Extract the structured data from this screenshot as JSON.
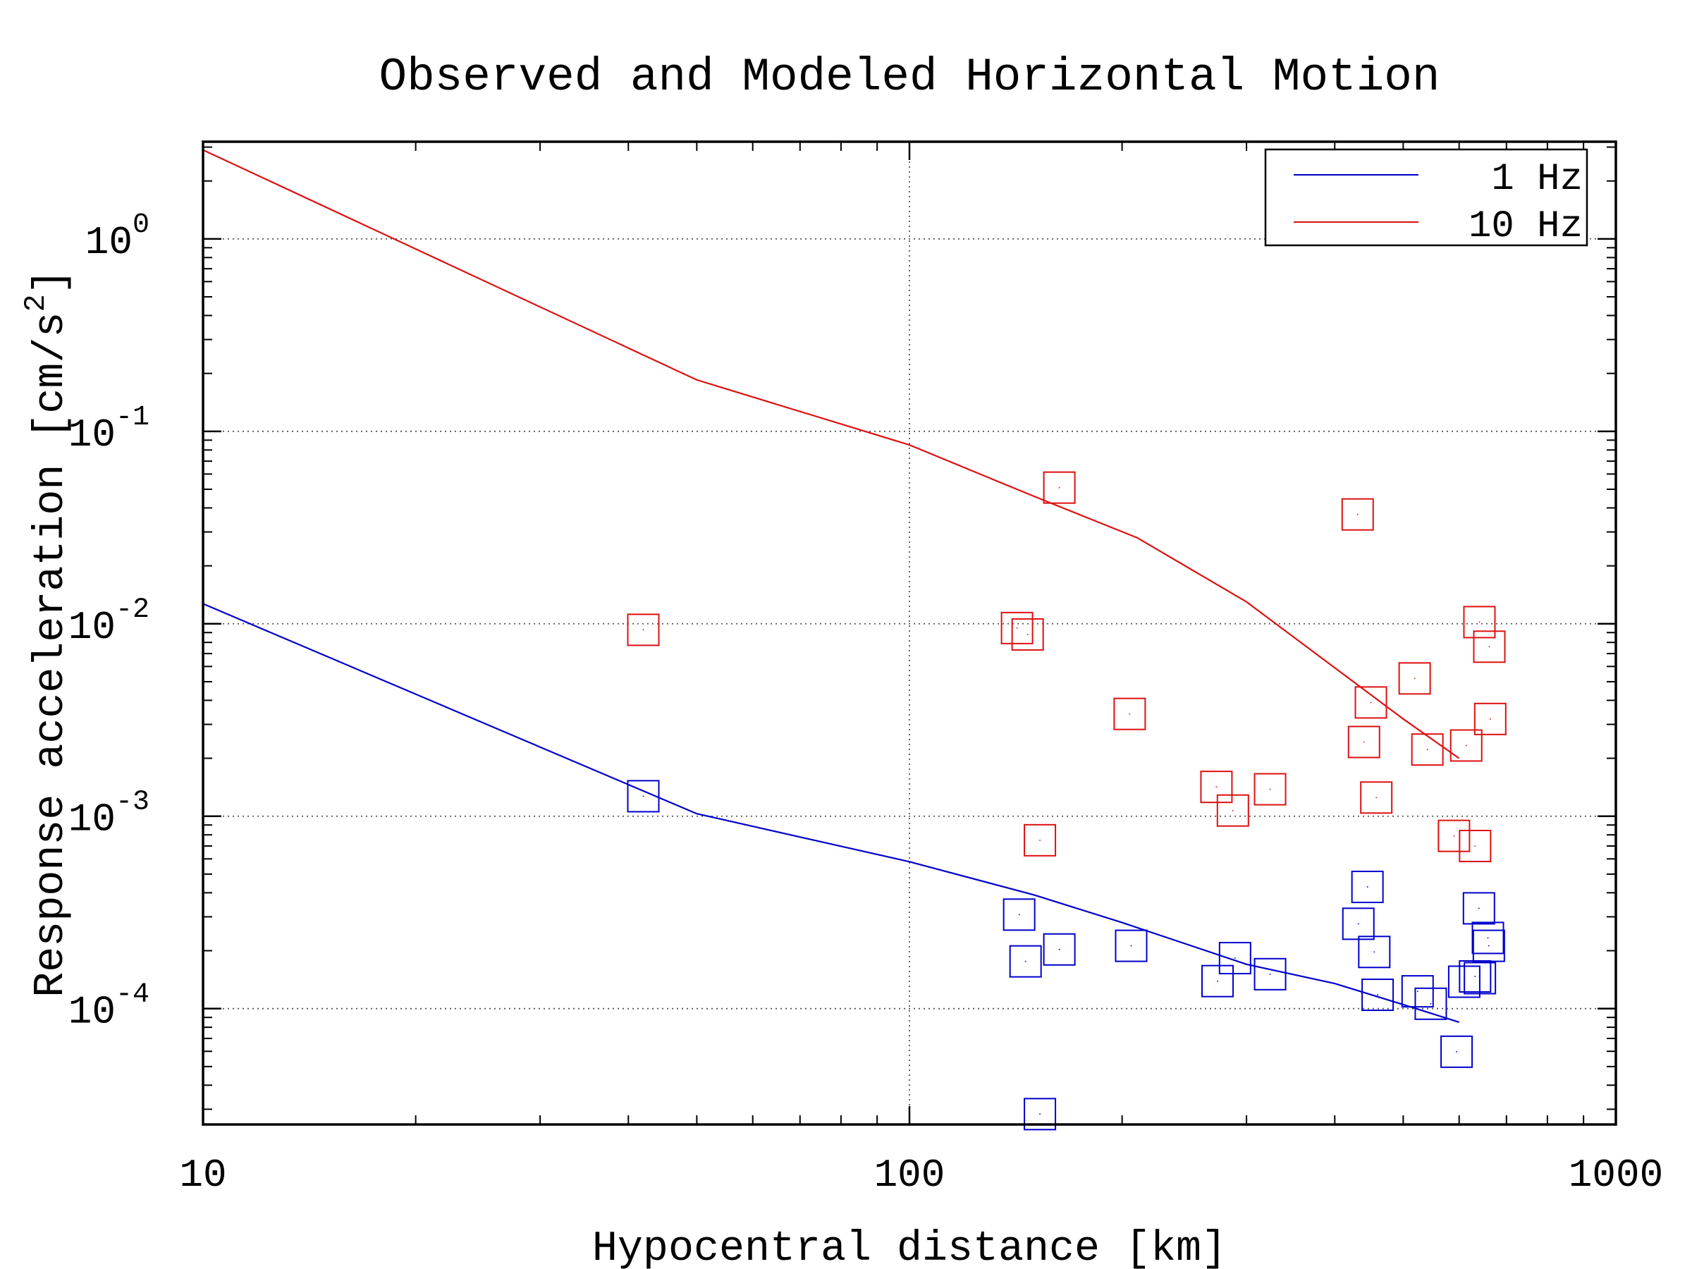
{
  "chart_data": {
    "type": "scatter",
    "title": "Observed and Modeled Horizontal Motion",
    "xlabel": "Hypocentral distance [km]",
    "ylabel": "Response acceleration [cm/s^2]",
    "ylabel_main": "Response acceleration [cm/s",
    "ylabel_sup": "2",
    "ylabel_end": "]",
    "xscale": "log",
    "yscale": "log",
    "xlim": [
      10,
      1000
    ],
    "ylim": [
      2.5e-05,
      3.2
    ],
    "xticks": [
      {
        "value": 10,
        "label": "10"
      },
      {
        "value": 100,
        "label": "100"
      },
      {
        "value": 1000,
        "label": "1000"
      }
    ],
    "yticks": [
      {
        "value": 0.0001,
        "base": "10",
        "exp": "-4"
      },
      {
        "value": 0.001,
        "base": "10",
        "exp": "-3"
      },
      {
        "value": 0.01,
        "base": "10",
        "exp": "-2"
      },
      {
        "value": 0.1,
        "base": "10",
        "exp": "-1"
      },
      {
        "value": 1,
        "base": "10",
        "exp": "0"
      }
    ],
    "grid": true,
    "legend_position": "top-right",
    "series": [
      {
        "name": "1 Hz",
        "color": "#0000cc",
        "line": {
          "x": [
            10,
            50,
            100,
            150,
            200,
            300,
            400,
            500,
            600
          ],
          "y": [
            0.0127,
            0.00103,
            0.00058,
            0.00039,
            0.00028,
            0.00017,
            0.000135,
            0.000105,
            8.5e-05
          ]
        },
        "points": {
          "x": [
            42,
            143,
            146,
            153,
            163,
            206,
            273,
            289,
            324,
            432,
            445,
            455,
            460,
            524,
            547,
            595,
            610,
            632,
            640,
            642,
            659,
            661
          ],
          "y": [
            0.00127,
            0.000308,
            0.000176,
            2.83e-05,
            0.000203,
            0.000212,
            0.000139,
            0.000183,
            0.000151,
            0.000276,
            0.000429,
            0.000197,
            0.000118,
            0.000123,
            0.000106,
            5.97e-05,
            0.000138,
            0.000147,
            0.000332,
            0.000144,
            0.000233,
            0.000212
          ]
        }
      },
      {
        "name": "10 Hz",
        "color": "#dd1111",
        "line": {
          "x": [
            10,
            50,
            100,
            150,
            210,
            300,
            400,
            500,
            600
          ],
          "y": [
            2.9,
            0.185,
            0.085,
            0.046,
            0.028,
            0.013,
            0.0059,
            0.0032,
            0.002
          ]
        },
        "points": {
          "x": [
            42,
            142,
            147,
            153,
            163,
            205,
            272,
            287,
            324,
            431,
            440,
            450,
            458,
            519,
            541,
            590,
            614,
            632,
            641,
            662,
            664
          ],
          "y": [
            0.0093,
            0.0095,
            0.0088,
            0.00075,
            0.051,
            0.0034,
            0.00142,
            0.00107,
            0.00138,
            0.037,
            0.00243,
            0.0039,
            0.00125,
            0.0052,
            0.00222,
            0.00079,
            0.00233,
            0.0007,
            0.0102,
            0.0076,
            0.0032
          ]
        }
      }
    ]
  }
}
